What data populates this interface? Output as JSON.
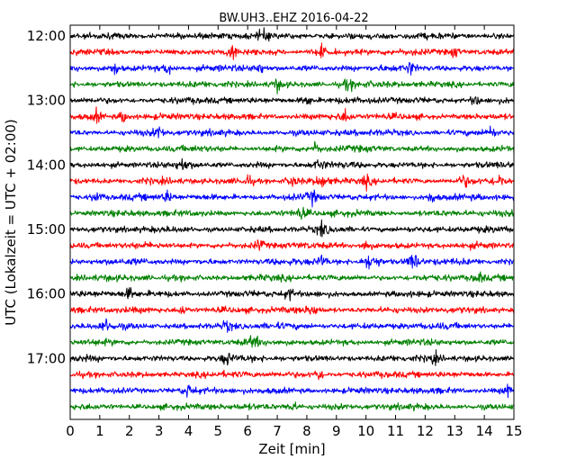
{
  "chart_data": {
    "type": "line",
    "title": "BW.UH3..EHZ 2016-04-22",
    "xlabel": "Zeit  [min]",
    "ylabel": "UTC (Lokalzeit = UTC + 02:00)",
    "xlim": [
      0,
      15
    ],
    "x_ticks": [
      "0",
      "1",
      "2",
      "3",
      "4",
      "5",
      "6",
      "7",
      "8",
      "9",
      "10",
      "11",
      "12",
      "13",
      "14",
      "15"
    ],
    "y_ticks": [
      "12:00",
      "13:00",
      "14:00",
      "15:00",
      "16:00",
      "17:00"
    ],
    "trace_colors": [
      "#000000",
      "#ff0000",
      "#0000ff",
      "#008000"
    ],
    "grid": false,
    "rows": [
      {
        "start": "12:00",
        "color_index": 0,
        "events": [
          6.5
        ]
      },
      {
        "start": "12:15",
        "color_index": 1,
        "events": [
          5.5,
          8.5,
          13.0
        ]
      },
      {
        "start": "12:30",
        "color_index": 2,
        "events": [
          1.5,
          3.3,
          6.4,
          11.5
        ]
      },
      {
        "start": "12:45",
        "color_index": 3,
        "events": [
          7.0,
          9.4
        ]
      },
      {
        "start": "13:00",
        "color_index": 0,
        "events": [
          8.0,
          13.7
        ]
      },
      {
        "start": "13:15",
        "color_index": 1,
        "events": [
          0.9,
          1.8,
          9.3
        ]
      },
      {
        "start": "13:30",
        "color_index": 2,
        "events": [
          3.0,
          14.2
        ]
      },
      {
        "start": "13:45",
        "color_index": 3,
        "events": [
          8.3
        ]
      },
      {
        "start": "14:00",
        "color_index": 0,
        "events": [
          3.8,
          8.4
        ]
      },
      {
        "start": "14:15",
        "color_index": 1,
        "events": [
          6.0,
          7.5,
          8.5,
          10.0,
          13.3,
          14.5
        ]
      },
      {
        "start": "14:30",
        "color_index": 2,
        "events": [
          0.9,
          3.3,
          8.2,
          12.2
        ]
      },
      {
        "start": "14:45",
        "color_index": 3,
        "events": [
          7.8
        ]
      },
      {
        "start": "15:00",
        "color_index": 0,
        "events": [
          8.5
        ]
      },
      {
        "start": "15:15",
        "color_index": 1,
        "events": [
          6.4,
          10.0
        ]
      },
      {
        "start": "15:30",
        "color_index": 2,
        "events": [
          8.5,
          10.1,
          10.3,
          11.5,
          11.7
        ]
      },
      {
        "start": "15:45",
        "color_index": 3,
        "events": [
          13.8
        ]
      },
      {
        "start": "16:00",
        "color_index": 0,
        "events": [
          2.0,
          7.4
        ]
      },
      {
        "start": "16:15",
        "color_index": 1,
        "events": [
          3.8,
          8.2
        ]
      },
      {
        "start": "16:30",
        "color_index": 2,
        "events": [
          1.2,
          5.3
        ]
      },
      {
        "start": "16:45",
        "color_index": 3,
        "events": [
          6.2
        ]
      },
      {
        "start": "17:00",
        "color_index": 0,
        "events": [
          5.3,
          12.3
        ]
      },
      {
        "start": "17:15",
        "color_index": 1,
        "events": [
          8.4
        ]
      },
      {
        "start": "17:30",
        "color_index": 2,
        "events": [
          4.0,
          14.8
        ]
      },
      {
        "start": "17:45",
        "color_index": 3,
        "events": [
          7.5
        ]
      }
    ]
  }
}
